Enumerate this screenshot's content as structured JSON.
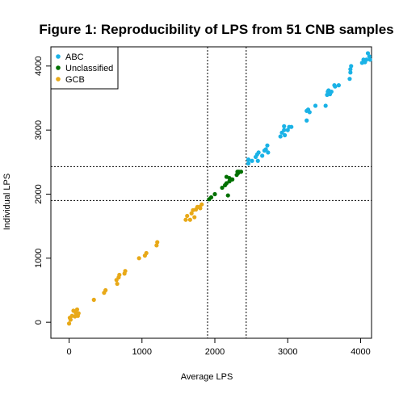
{
  "chart_data": {
    "type": "scatter",
    "title": "Figure 1: Reproducibility of LPS from 51 CNB samples",
    "xlabel": "Average LPS",
    "ylabel": "Individual LPS",
    "xlim": [
      -250,
      4150
    ],
    "ylim": [
      -250,
      4300
    ],
    "xticks": [
      0,
      1000,
      2000,
      3000,
      4000
    ],
    "yticks": [
      0,
      1000,
      2000,
      3000,
      4000
    ],
    "grid": false,
    "legend_position": "top-left",
    "thresholds": {
      "vertical": [
        1900,
        2430
      ],
      "horizontal": [
        1900,
        2430
      ]
    },
    "colors": {
      "ABC": "#1ab2e6",
      "Unclassified": "#007000",
      "GCB": "#e8a918"
    },
    "series": [
      {
        "name": "ABC",
        "points": [
          [
            2460,
            2480
          ],
          [
            2460,
            2540
          ],
          [
            2510,
            2520
          ],
          [
            2560,
            2580
          ],
          [
            2580,
            2620
          ],
          [
            2590,
            2520
          ],
          [
            2600,
            2650
          ],
          [
            2650,
            2600
          ],
          [
            2680,
            2680
          ],
          [
            2700,
            2700
          ],
          [
            2720,
            2760
          ],
          [
            2730,
            2650
          ],
          [
            2900,
            2900
          ],
          [
            2920,
            2960
          ],
          [
            2950,
            3000
          ],
          [
            2950,
            3060
          ],
          [
            2960,
            2920
          ],
          [
            3000,
            3000
          ],
          [
            3020,
            3050
          ],
          [
            3050,
            3050
          ],
          [
            3260,
            3150
          ],
          [
            3260,
            3300
          ],
          [
            3280,
            3320
          ],
          [
            3300,
            3280
          ],
          [
            3380,
            3380
          ],
          [
            3520,
            3380
          ],
          [
            3540,
            3550
          ],
          [
            3550,
            3600
          ],
          [
            3560,
            3620
          ],
          [
            3580,
            3560
          ],
          [
            3600,
            3600
          ],
          [
            3640,
            3700
          ],
          [
            3650,
            3680
          ],
          [
            3700,
            3700
          ],
          [
            3850,
            3800
          ],
          [
            3860,
            3900
          ],
          [
            3860,
            3950
          ],
          [
            3870,
            4000
          ],
          [
            4020,
            4050
          ],
          [
            4040,
            4100
          ],
          [
            4060,
            4060
          ],
          [
            4080,
            4100
          ],
          [
            4100,
            4200
          ],
          [
            4120,
            4150
          ],
          [
            4130,
            4100
          ]
        ]
      },
      {
        "name": "Unclassified",
        "points": [
          [
            1920,
            1920
          ],
          [
            1950,
            1950
          ],
          [
            2000,
            2000
          ],
          [
            2100,
            2100
          ],
          [
            2140,
            2140
          ],
          [
            2160,
            2170
          ],
          [
            2160,
            2270
          ],
          [
            2180,
            1980
          ],
          [
            2200,
            2200
          ],
          [
            2200,
            2250
          ],
          [
            2240,
            2230
          ],
          [
            2300,
            2300
          ],
          [
            2310,
            2350
          ],
          [
            2320,
            2330
          ],
          [
            2330,
            2350
          ],
          [
            2360,
            2350
          ]
        ]
      },
      {
        "name": "GCB",
        "points": [
          [
            0,
            -20
          ],
          [
            10,
            70
          ],
          [
            20,
            40
          ],
          [
            40,
            100
          ],
          [
            60,
            180
          ],
          [
            80,
            90
          ],
          [
            90,
            150
          ],
          [
            100,
            120
          ],
          [
            110,
            200
          ],
          [
            120,
            100
          ],
          [
            130,
            140
          ],
          [
            340,
            350
          ],
          [
            480,
            460
          ],
          [
            500,
            500
          ],
          [
            650,
            660
          ],
          [
            660,
            600
          ],
          [
            680,
            700
          ],
          [
            690,
            740
          ],
          [
            760,
            760
          ],
          [
            770,
            800
          ],
          [
            960,
            1000
          ],
          [
            1040,
            1040
          ],
          [
            1060,
            1080
          ],
          [
            1200,
            1200
          ],
          [
            1210,
            1250
          ],
          [
            1600,
            1600
          ],
          [
            1620,
            1660
          ],
          [
            1660,
            1600
          ],
          [
            1680,
            1700
          ],
          [
            1700,
            1750
          ],
          [
            1720,
            1640
          ],
          [
            1740,
            1760
          ],
          [
            1760,
            1800
          ],
          [
            1790,
            1800
          ],
          [
            1800,
            1780
          ],
          [
            1820,
            1840
          ]
        ]
      }
    ]
  }
}
